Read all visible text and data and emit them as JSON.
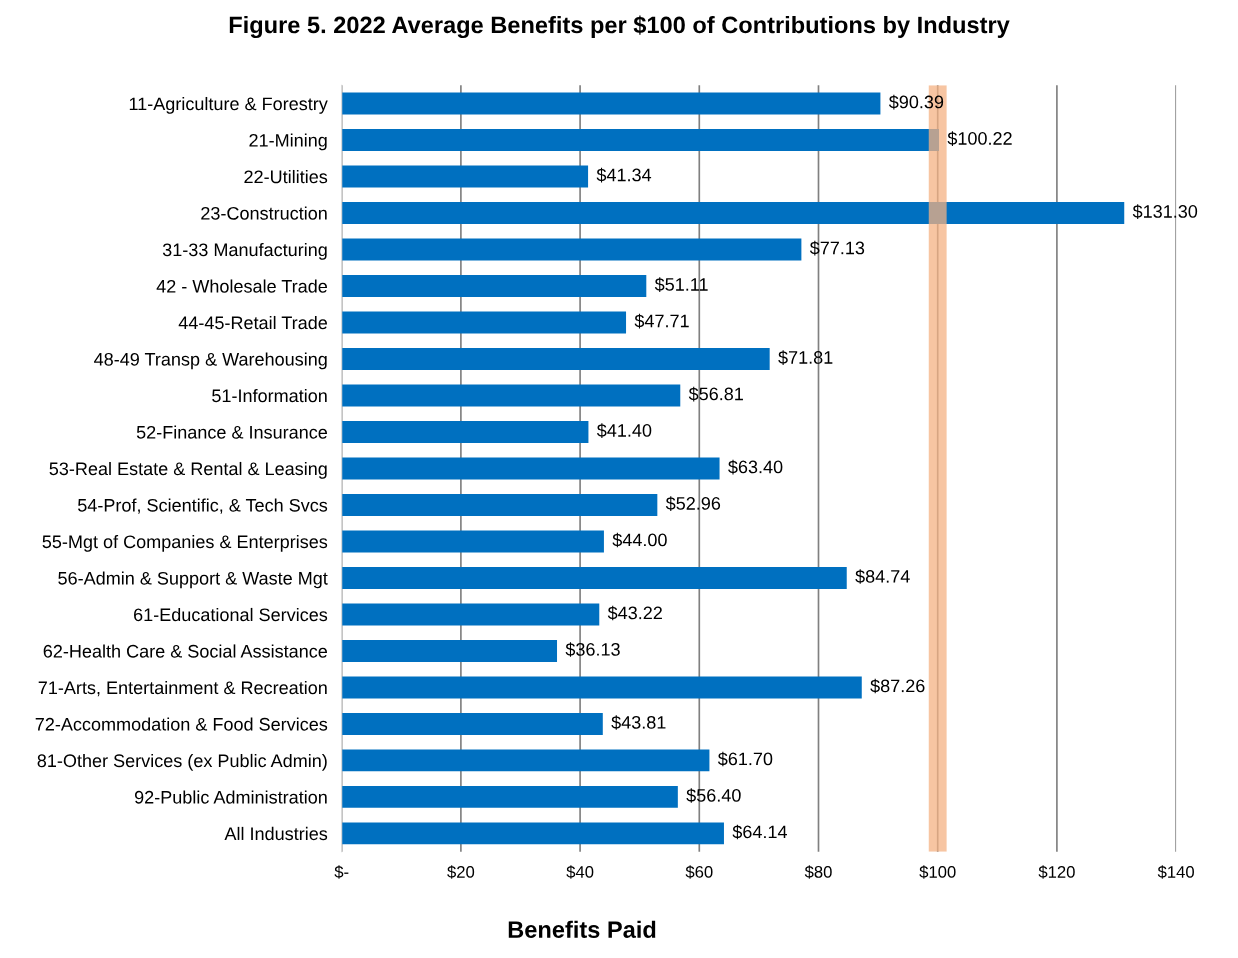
{
  "chart_data": {
    "type": "bar",
    "orientation": "horizontal",
    "title": "Figure 5. 2022 Average Benefits per $100 of Contributions by Industry",
    "xlabel": "Benefits Paid",
    "categories": [
      "11-Agriculture & Forestry",
      "21-Mining",
      "22-Utilities",
      "23-Construction",
      "31-33 Manufacturing",
      "42 - Wholesale Trade",
      "44-45-Retail Trade",
      "48-49 Transp & Warehousing",
      "51-Information",
      "52-Finance & Insurance",
      "53-Real Estate & Rental & Leasing",
      "54-Prof, Scientific, & Tech Svcs",
      "55-Mgt of Companies & Enterprises",
      "56-Admin & Support & Waste Mgt",
      "61-Educational Services",
      "62-Health Care & Social Assistance",
      "71-Arts, Entertainment & Recreation",
      "72-Accommodation & Food Services",
      "81-Other Services (ex Public Admin)",
      "92-Public Administration",
      "All Industries"
    ],
    "values": [
      90.39,
      100.22,
      41.34,
      131.3,
      77.13,
      51.11,
      47.71,
      71.81,
      56.81,
      41.4,
      63.4,
      52.96,
      44.0,
      84.74,
      43.22,
      36.13,
      87.26,
      43.81,
      61.7,
      56.4,
      64.14
    ],
    "value_labels": [
      "$90.39",
      "$100.22",
      "$41.34",
      "$131.30",
      "$77.13",
      "$51.11",
      "$47.71",
      "$71.81",
      "$56.81",
      "$41.40",
      "$63.40",
      "$52.96",
      "$44.00",
      "$84.74",
      "$43.22",
      "$36.13",
      "$87.26",
      "$43.81",
      "$61.70",
      "$56.40",
      "$64.14"
    ],
    "color": "#0070c0",
    "xlim": [
      0,
      140
    ],
    "xticks": [
      {
        "value": 0,
        "label": "$-"
      },
      {
        "value": 20,
        "label": "$20"
      },
      {
        "value": 40,
        "label": "$40"
      },
      {
        "value": 60,
        "label": "$60"
      },
      {
        "value": 80,
        "label": "$80"
      },
      {
        "value": 100,
        "label": "$100"
      },
      {
        "value": 120,
        "label": "$120"
      },
      {
        "value": 140,
        "label": "$140"
      }
    ],
    "bands": [
      {
        "axis": "x",
        "from": 98.5,
        "to": 101.5,
        "color": "#f4b183"
      }
    ],
    "grid": "x",
    "legend": false
  }
}
